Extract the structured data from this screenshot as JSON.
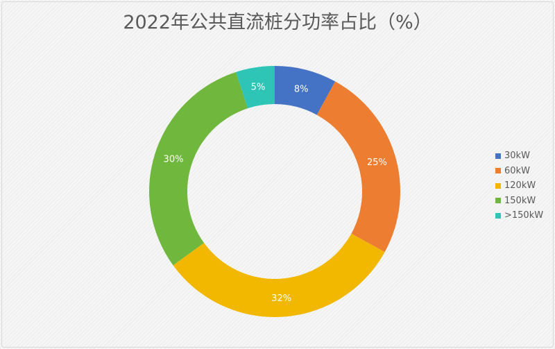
{
  "chart_data": {
    "type": "pie",
    "variant": "donut",
    "title": "2022年公共直流桩分功率占比（%）",
    "categories": [
      "30kW",
      "60kW",
      "120kW",
      "150kW",
      ">150kW"
    ],
    "values": [
      8,
      25,
      32,
      30,
      5
    ],
    "data_labels": [
      "8%",
      "25%",
      "32%",
      "30%",
      "5%"
    ],
    "colors": [
      "#4472c4",
      "#ed7d31",
      "#f2b800",
      "#70b73e",
      "#2ec4b6"
    ],
    "legend_position": "right",
    "start_angle": "top, clockwise"
  }
}
